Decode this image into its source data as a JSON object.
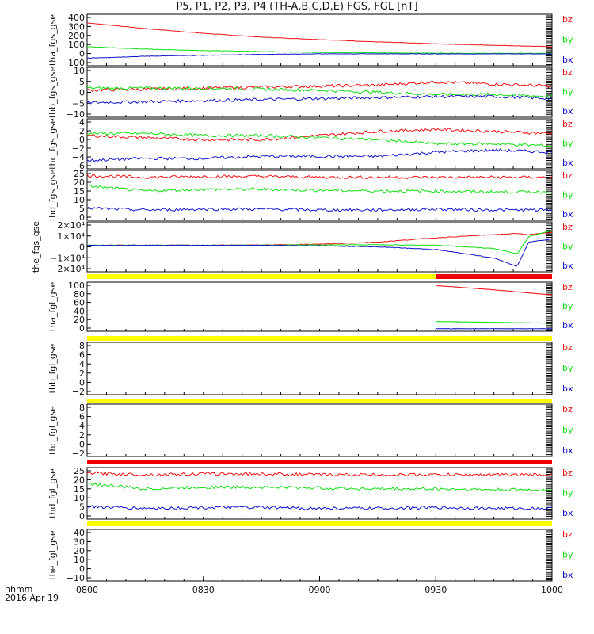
{
  "title": "P5, P1, P2, P3, P4 (TH-A,B,C,D,E) FGS, FGL [nT]",
  "footer": {
    "line1": "hhmm",
    "line2": "2016 Apr 19"
  },
  "colors": {
    "bz": "#ee1111",
    "by": "#11dd11",
    "bx": "#1111cc",
    "flag_yellow": "#ffff00",
    "flag_red": "#ee0000"
  },
  "chart_data": [
    {
      "type": "line",
      "ylabel": "tha_fgs_gse",
      "yticks": [
        "400",
        "300",
        "200",
        "100",
        "0",
        "−100"
      ],
      "ylim": [
        -120,
        420
      ],
      "x_hours": [
        8.0,
        8.25,
        8.5,
        8.75,
        9.0,
        9.25,
        9.5,
        9.75,
        10.0
      ],
      "series": [
        {
          "name": "bz",
          "values": [
            330,
            270,
            220,
            180,
            155,
            130,
            110,
            95,
            80
          ]
        },
        {
          "name": "by",
          "values": [
            80,
            55,
            40,
            30,
            20,
            15,
            12,
            10,
            10
          ]
        },
        {
          "name": "bx",
          "values": [
            -40,
            -20,
            -10,
            0,
            5,
            5,
            5,
            5,
            5
          ]
        }
      ]
    },
    {
      "type": "line",
      "ylabel": "thb_fgs_gse",
      "yticks": [
        "10",
        "5",
        "0",
        "−5",
        "−10"
      ],
      "ylim": [
        -12,
        12
      ],
      "x_hours": [
        8.0,
        8.25,
        8.5,
        8.75,
        9.0,
        9.25,
        9.5,
        9.75,
        10.0
      ],
      "series": [
        {
          "name": "bz",
          "values": [
            1,
            1.5,
            2,
            2.5,
            3,
            3.5,
            5,
            4,
            3
          ]
        },
        {
          "name": "by",
          "values": [
            2,
            2,
            2,
            1.5,
            1,
            0,
            -1,
            -1,
            -2
          ]
        },
        {
          "name": "bx",
          "values": [
            -5,
            -4.5,
            -4,
            -3.5,
            -3,
            -2.5,
            -2,
            -2,
            -3
          ]
        }
      ]
    },
    {
      "type": "line",
      "ylabel": "thc_fgs_gse",
      "yticks": [
        "4",
        "2",
        "0",
        "−2",
        "−4",
        "−6"
      ],
      "ylim": [
        -7,
        5
      ],
      "x_hours": [
        8.0,
        8.25,
        8.5,
        8.75,
        9.0,
        9.25,
        9.5,
        9.75,
        10.0
      ],
      "series": [
        {
          "name": "bz",
          "values": [
            1,
            0.5,
            0,
            0,
            1,
            2,
            2.5,
            2,
            1.5
          ]
        },
        {
          "name": "by",
          "values": [
            1.5,
            1.5,
            1,
            1,
            0.5,
            0,
            -1,
            -1,
            -1.5
          ]
        },
        {
          "name": "bx",
          "values": [
            -5,
            -4.5,
            -4.5,
            -4,
            -4,
            -4,
            -3,
            -2.5,
            -3
          ]
        }
      ]
    },
    {
      "type": "line",
      "ylabel": "thd_fgs_gse",
      "yticks": [
        "25",
        "20",
        "15",
        "10",
        "5",
        "0"
      ],
      "ylim": [
        -2,
        27
      ],
      "x_hours": [
        8.0,
        8.25,
        8.5,
        8.75,
        9.0,
        9.25,
        9.5,
        9.75,
        10.0
      ],
      "series": [
        {
          "name": "bz",
          "values": [
            24,
            23,
            23.5,
            23.5,
            23,
            23,
            23,
            23,
            23
          ]
        },
        {
          "name": "by",
          "values": [
            18,
            15,
            16,
            16,
            15.5,
            15,
            15,
            14.5,
            14.5
          ]
        },
        {
          "name": "bx",
          "values": [
            5,
            4,
            4.5,
            4.5,
            4,
            4,
            4.5,
            4,
            4
          ]
        }
      ]
    },
    {
      "type": "line",
      "ylabel": "the_fgs_gse",
      "yticks": [
        "2×10⁴",
        "1×10⁴",
        "0",
        "−1×10⁴",
        "−2×10⁴"
      ],
      "ylim": [
        -25000,
        22000
      ],
      "x_hours": [
        8.0,
        8.25,
        8.5,
        8.75,
        9.0,
        9.25,
        9.5,
        9.75,
        9.85,
        9.9,
        10.0
      ],
      "series": [
        {
          "name": "bz",
          "values": [
            0,
            0,
            0,
            200,
            1000,
            3000,
            7000,
            10000,
            11000,
            10000,
            12000
          ]
        },
        {
          "name": "by",
          "values": [
            0,
            0,
            0,
            100,
            300,
            500,
            0,
            -3000,
            -8000,
            8000,
            14000
          ]
        },
        {
          "name": "bx",
          "values": [
            0,
            0,
            0,
            -100,
            -500,
            -1500,
            -4000,
            -12000,
            -20000,
            3000,
            6000
          ]
        }
      ]
    },
    {
      "type": "line",
      "ylabel": "tha_fgl_gse",
      "yticks": [
        "100",
        "80",
        "60",
        "40",
        "20",
        "0"
      ],
      "ylim": [
        -5,
        110
      ],
      "x_hours": [
        9.5,
        9.75,
        10.0
      ],
      "series": [
        {
          "name": "bz",
          "values": [
            102,
            92,
            80
          ]
        },
        {
          "name": "by",
          "values": [
            18,
            16,
            14
          ]
        },
        {
          "name": "bx",
          "values": [
            1,
            1,
            1
          ]
        }
      ]
    },
    {
      "type": "line",
      "ylabel": "thb_fgl_gse",
      "yticks": [
        "8",
        "6",
        "4",
        "2",
        "0",
        "−2"
      ],
      "ylim": [
        -3.5,
        9
      ],
      "series": [
        {
          "name": "bz",
          "values": []
        },
        {
          "name": "by",
          "values": []
        },
        {
          "name": "bx",
          "values": []
        }
      ]
    },
    {
      "type": "line",
      "ylabel": "thc_fgl_gse",
      "yticks": [
        "8",
        "6",
        "4",
        "2",
        "0",
        "−2"
      ],
      "ylim": [
        -3.5,
        9
      ],
      "series": [
        {
          "name": "bz",
          "values": []
        },
        {
          "name": "by",
          "values": []
        },
        {
          "name": "bx",
          "values": []
        }
      ]
    },
    {
      "type": "line",
      "ylabel": "thd_fgl_gse",
      "yticks": [
        "25",
        "20",
        "15",
        "10",
        "5",
        "0"
      ],
      "ylim": [
        -2,
        27
      ],
      "x_hours": [
        8.0,
        8.25,
        8.5,
        8.75,
        9.0,
        9.25,
        9.5,
        9.75,
        10.0
      ],
      "series": [
        {
          "name": "bz",
          "values": [
            24,
            23,
            23.5,
            23.5,
            23,
            23,
            23,
            23,
            23
          ]
        },
        {
          "name": "by",
          "values": [
            18,
            15,
            16,
            16,
            15.5,
            15,
            15,
            14.5,
            14.5
          ]
        },
        {
          "name": "bx",
          "values": [
            5,
            4,
            4.5,
            4.5,
            4,
            4,
            4.5,
            4,
            4
          ]
        }
      ]
    },
    {
      "type": "line",
      "ylabel": "the_fgl_gse",
      "yticks": [
        "40",
        "30",
        "20",
        "10",
        "0",
        "−10"
      ],
      "ylim": [
        -12,
        45
      ],
      "series": [
        {
          "name": "bz",
          "values": []
        },
        {
          "name": "by",
          "values": []
        },
        {
          "name": "bx",
          "values": []
        }
      ]
    }
  ],
  "x_axis": {
    "ticks": [
      "0800",
      "0830",
      "0900",
      "0930",
      "1000"
    ],
    "range_hours": [
      8.0,
      10.0
    ]
  },
  "flag_bars": [
    {
      "after_panel": 4,
      "segments": [
        {
          "color": "yellow",
          "from": 8.0,
          "to": 9.5
        },
        {
          "color": "red",
          "from": 9.5,
          "to": 10.0
        }
      ]
    },
    {
      "after_panel": 5,
      "segments": [
        {
          "color": "yellow",
          "from": 8.0,
          "to": 10.0
        }
      ]
    },
    {
      "after_panel": 6,
      "segments": [
        {
          "color": "yellow",
          "from": 8.0,
          "to": 10.0
        }
      ]
    },
    {
      "after_panel": 7,
      "segments": [
        {
          "color": "red",
          "from": 8.0,
          "to": 10.0
        }
      ]
    },
    {
      "after_panel": 8,
      "segments": [
        {
          "color": "yellow",
          "from": 8.0,
          "to": 10.0
        }
      ]
    }
  ]
}
